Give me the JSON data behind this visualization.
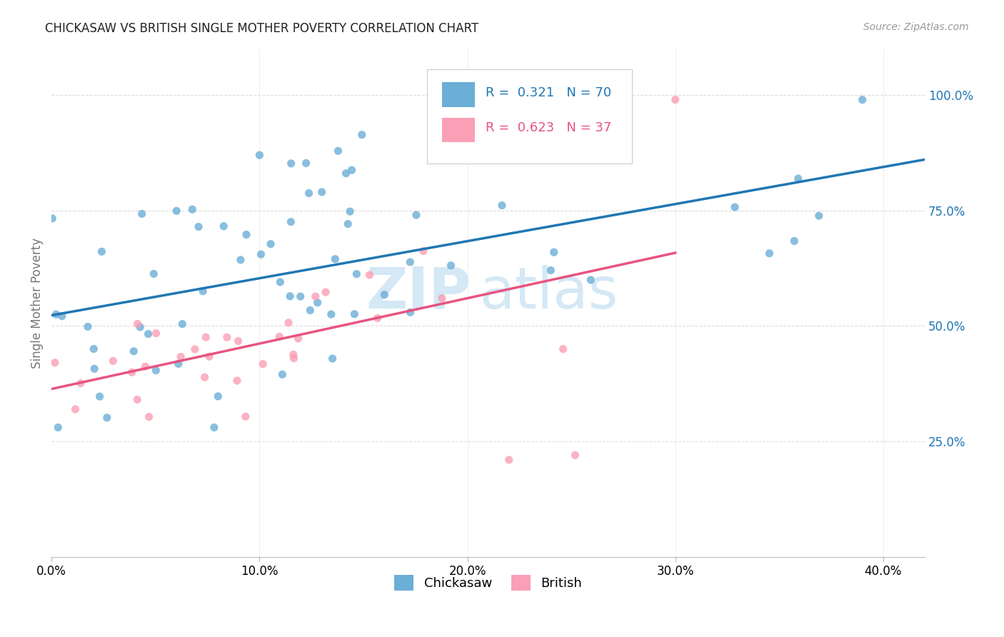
{
  "title": "CHICKASAW VS BRITISH SINGLE MOTHER POVERTY CORRELATION CHART",
  "source": "Source: ZipAtlas.com",
  "ylabel": "Single Mother Poverty",
  "xlabel_ticks": [
    "0.0%",
    "10.0%",
    "20.0%",
    "30.0%",
    "40.0%"
  ],
  "xlabel_vals": [
    0.0,
    0.1,
    0.2,
    0.3,
    0.4
  ],
  "ylabel_ticks": [
    "25.0%",
    "50.0%",
    "75.0%",
    "100.0%"
  ],
  "ylabel_vals": [
    0.25,
    0.5,
    0.75,
    1.0
  ],
  "xlim": [
    0.0,
    0.42
  ],
  "ylim": [
    0.0,
    1.1
  ],
  "chickasaw_color": "#6baed6",
  "british_color": "#fa9fb5",
  "chickasaw_line_color": "#1f77b4",
  "british_line_color": "#e75480",
  "R_chickasaw": 0.321,
  "N_chickasaw": 70,
  "R_british": 0.623,
  "N_british": 37,
  "watermark_zip": "ZIP",
  "watermark_atlas": "atlas",
  "watermark_color": "#d4e8f5",
  "legend_labels": [
    "Chickasaw",
    "British"
  ],
  "background_color": "#ffffff",
  "grid_color": "#dddddd",
  "title_color": "#222222",
  "axis_label_color": "#777777",
  "right_tick_color": "#1f77b4",
  "seed": 12
}
